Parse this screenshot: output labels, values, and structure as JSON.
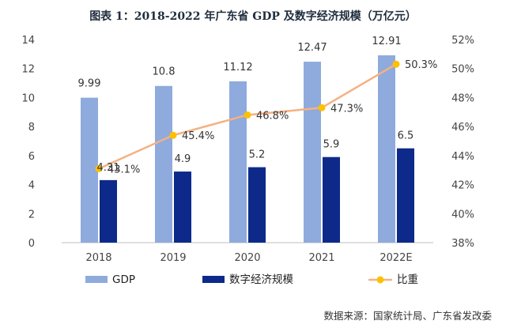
{
  "title": "图表 1：2018-2022 年广东省 GDP 及数字经济规模（万亿元）",
  "source": "数据来源：国家统计局、广东省发改委",
  "chart_data": {
    "type": "bar",
    "categories": [
      "2018",
      "2019",
      "2020",
      "2021",
      "2022E"
    ],
    "series": [
      {
        "name": "GDP",
        "type": "bar",
        "axis": "left",
        "color": "#8faadc",
        "values": [
          9.99,
          10.8,
          11.12,
          12.47,
          12.91
        ],
        "labels": [
          "9.99",
          "10.8",
          "11.12",
          "12.47",
          "12.91"
        ]
      },
      {
        "name": "数字经济规模",
        "type": "bar",
        "axis": "left",
        "color": "#0d2a8a",
        "values": [
          4.31,
          4.9,
          5.2,
          5.9,
          6.5
        ],
        "labels": [
          "4.31",
          "4.9",
          "5.2",
          "5.9",
          "6.5"
        ]
      },
      {
        "name": "比重",
        "type": "line",
        "axis": "right",
        "color": "#f4b183",
        "marker_color": "#ffc000",
        "values": [
          43.1,
          45.4,
          46.8,
          47.3,
          50.3
        ],
        "labels": [
          "43.1%",
          "45.4%",
          "46.8%",
          "47.3%",
          "50.3%"
        ]
      }
    ],
    "y_left": {
      "min": 0,
      "max": 14,
      "ticks": [
        "0",
        "2",
        "4",
        "6",
        "8",
        "10",
        "12",
        "14"
      ]
    },
    "y_right": {
      "min": 38,
      "max": 52,
      "ticks": [
        "38%",
        "40%",
        "42%",
        "44%",
        "46%",
        "48%",
        "50%",
        "52%"
      ]
    },
    "grid": false,
    "legend": "bottom"
  }
}
